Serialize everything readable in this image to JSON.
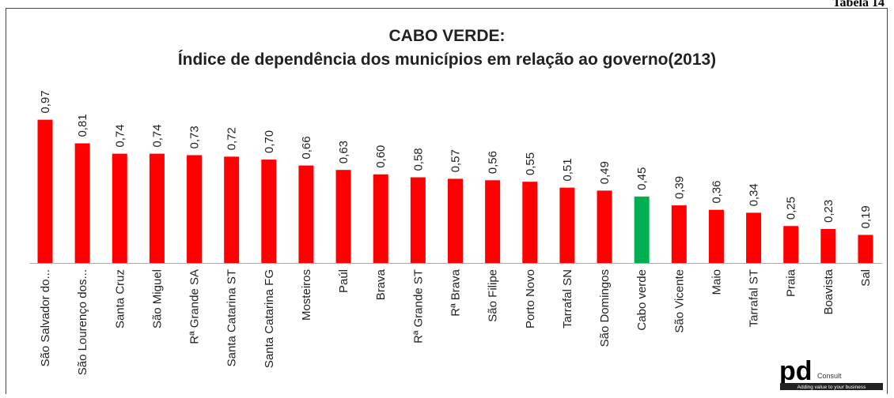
{
  "table_label": "Tabela 14",
  "logo": {
    "mark": "pd",
    "name": "Consult",
    "tagline": "Adding value to your business"
  },
  "chart_data": {
    "type": "bar",
    "title": "CABO VERDE:",
    "subtitle": "Índice de dependência dos municípios em relação ao governo(2013)",
    "categories": [
      "São Salvador do...",
      "São Lourenço dos...",
      "Santa Cruz",
      "São Miguel",
      "Rª Grande SA",
      "Santa Catarina ST",
      "Santa Catarina FG",
      "Mosteiros",
      "Paúl",
      "Brava",
      "Rª Grande ST",
      "Rª Brava",
      "São Filipe",
      "Porto Novo",
      "Tarrafal SN",
      "São Domingos",
      "Cabo verde",
      "São Vicente",
      "Maio",
      "Tarrafal ST",
      "Praia",
      "Boavista",
      "Sal"
    ],
    "values": [
      0.97,
      0.81,
      0.74,
      0.74,
      0.73,
      0.72,
      0.7,
      0.66,
      0.63,
      0.6,
      0.58,
      0.57,
      0.56,
      0.55,
      0.51,
      0.49,
      0.45,
      0.39,
      0.36,
      0.34,
      0.25,
      0.23,
      0.19
    ],
    "value_labels": [
      "0,97",
      "0,81",
      "0,74",
      "0,74",
      "0,73",
      "0,72",
      "0,70",
      "0,66",
      "0,63",
      "0,60",
      "0,58",
      "0,57",
      "0,56",
      "0,55",
      "0,51",
      "0,49",
      "0,45",
      "0,39",
      "0,36",
      "0,34",
      "0,25",
      "0,23",
      "0,19"
    ],
    "colors": [
      "#ff0000",
      "#ff0000",
      "#ff0000",
      "#ff0000",
      "#ff0000",
      "#ff0000",
      "#ff0000",
      "#ff0000",
      "#ff0000",
      "#ff0000",
      "#ff0000",
      "#ff0000",
      "#ff0000",
      "#ff0000",
      "#ff0000",
      "#ff0000",
      "#00b050",
      "#ff0000",
      "#ff0000",
      "#ff0000",
      "#ff0000",
      "#ff0000",
      "#ff0000"
    ],
    "ylim": [
      0,
      1
    ]
  }
}
